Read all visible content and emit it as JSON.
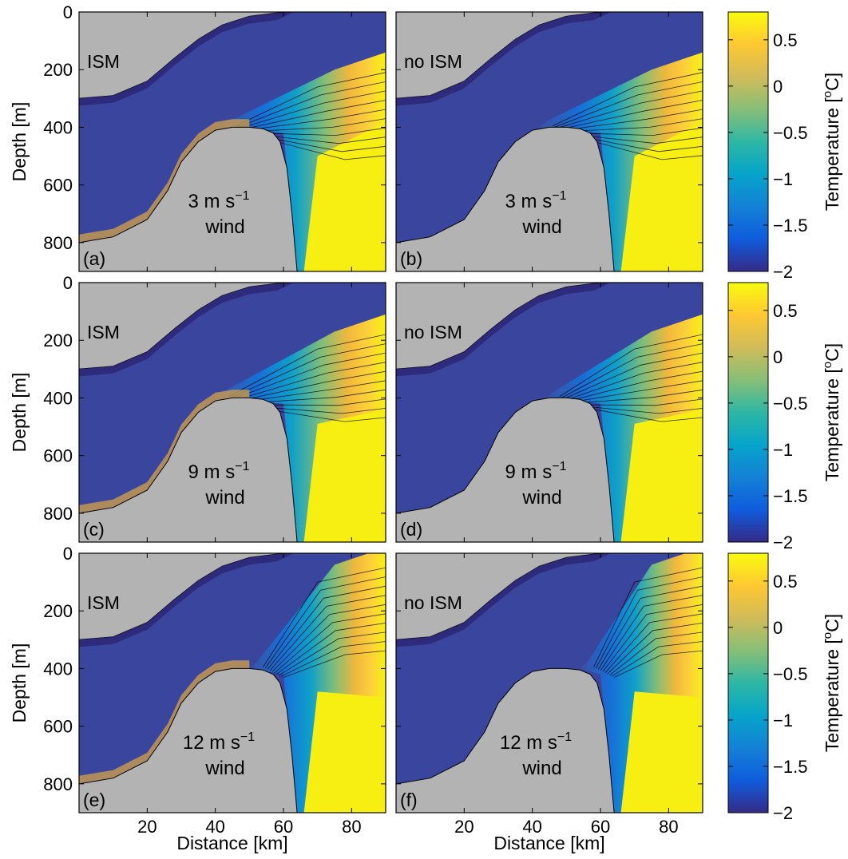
{
  "chart_data": {
    "type": "heatmap",
    "layout": "3 rows x 2 columns of ocean temperature sections with one colorbar per row",
    "xlabel": "Distance [km]",
    "ylabel": "Depth [m]",
    "xlim": [
      0,
      90
    ],
    "ylim": [
      0,
      900
    ],
    "y_inverted": true,
    "x_ticks": [
      "20",
      "40",
      "60",
      "80"
    ],
    "y_ticks": [
      "0",
      "200",
      "400",
      "600",
      "800"
    ],
    "grid": false,
    "colorbar": {
      "label": "Temperature [",
      "label_sup": "o",
      "label_end": "C]",
      "range": [
        -2,
        0.8
      ],
      "ticks": [
        "0.5",
        "0",
        "−0.5",
        "−1",
        "−1.5",
        "−2"
      ],
      "colormap": "parula",
      "colors": [
        "#352a87",
        "#0f5cdd",
        "#1481d6",
        "#06a4ca",
        "#2eb7a4",
        "#87bf77",
        "#d1bb59",
        "#fec832",
        "#f9fb0e"
      ]
    },
    "mask_color": "#b3b3b3",
    "panels": [
      {
        "id": "(a)",
        "case": "ISM",
        "wind": "3 m s",
        "wind_sup": "−1",
        "wind_word": "wind",
        "row": 0,
        "col": 0
      },
      {
        "id": "(b)",
        "case": "no ISM",
        "wind": "3 m s",
        "wind_sup": "−1",
        "wind_word": "wind",
        "row": 0,
        "col": 1
      },
      {
        "id": "(c)",
        "case": "ISM",
        "wind": "9 m s",
        "wind_sup": "−1",
        "wind_word": "wind",
        "row": 1,
        "col": 0
      },
      {
        "id": "(d)",
        "case": "no ISM",
        "wind": "9 m s",
        "wind_sup": "−1",
        "wind_word": "wind",
        "row": 1,
        "col": 1
      },
      {
        "id": "(e)",
        "case": "ISM",
        "wind": "12 m s",
        "wind_sup": "−1",
        "wind_word": "wind",
        "row": 2,
        "col": 0
      },
      {
        "id": "(f)",
        "case": "no ISM",
        "wind": "12 m s",
        "wind_sup": "−1",
        "wind_word": "wind",
        "row": 2,
        "col": 1
      }
    ],
    "ice_shelf_draft": {
      "x": [
        0,
        10,
        20,
        28,
        35,
        42,
        50,
        58,
        63,
        68,
        75,
        90
      ],
      "y": [
        300,
        290,
        240,
        160,
        95,
        45,
        15,
        3,
        0,
        0,
        0,
        0
      ]
    },
    "sill_bathymetry": {
      "x": [
        0,
        10,
        20,
        26,
        30,
        35,
        40,
        45,
        50,
        54,
        57,
        59,
        61,
        62.5,
        64
      ],
      "y": [
        800,
        780,
        720,
        620,
        520,
        450,
        410,
        400,
        400,
        405,
        420,
        450,
        540,
        700,
        900
      ]
    }
  }
}
